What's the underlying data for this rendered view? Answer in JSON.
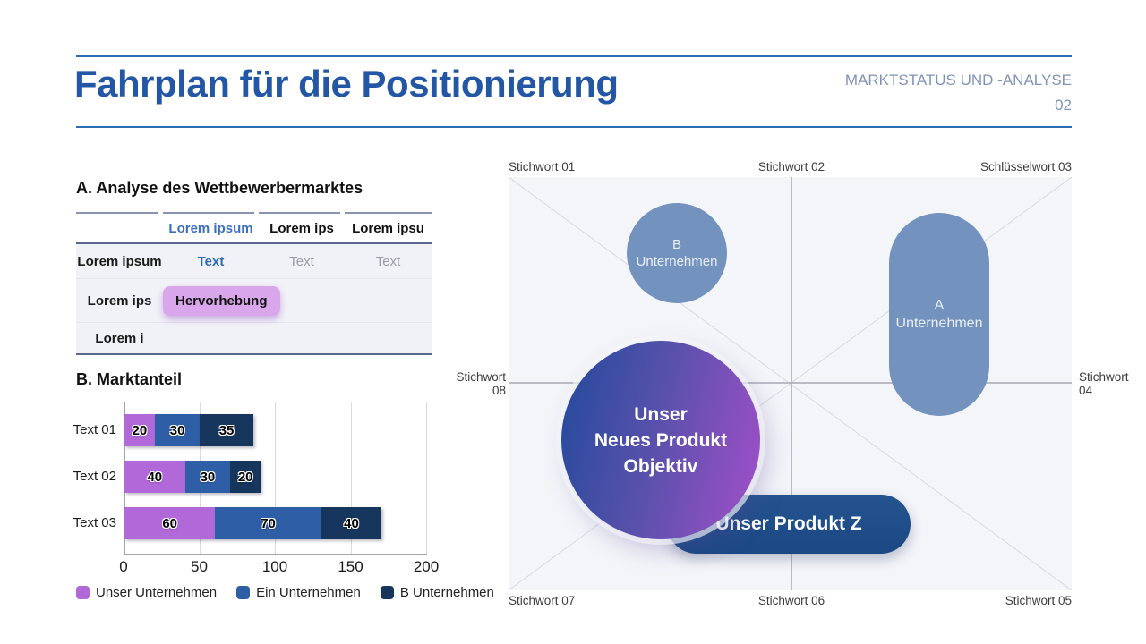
{
  "header": {
    "title": "Fahrplan für die Positionierung",
    "subtitle": "MARKTSTATUS UND -ANALYSE",
    "page_number": "02"
  },
  "section_a": {
    "heading": "A. Analyse des Wettbewerbermarktes",
    "table": {
      "col_headers": [
        "",
        "Lorem ipsum",
        "Lorem ips",
        "Lorem ipsu"
      ],
      "row1": {
        "label": "Lorem ipsum",
        "c1": "Text",
        "c2": "Text",
        "c3": "Text"
      },
      "row2": {
        "label": "Lorem ips",
        "highlight": "Hervorhebung"
      },
      "row3": {
        "label": "Lorem i"
      }
    }
  },
  "section_b": {
    "heading": "B. Marktanteil"
  },
  "chart_data": {
    "type": "bar",
    "orientation": "horizontal",
    "stacked": true,
    "title": "B. Marktanteil",
    "categories": [
      "Text 01",
      "Text 02",
      "Text 03"
    ],
    "series": [
      {
        "name": "Unser Unternehmen",
        "color": "#b168d9",
        "values": [
          20,
          40,
          60
        ]
      },
      {
        "name": "Ein Unternehmen",
        "color": "#2e5ea6",
        "values": [
          30,
          30,
          70
        ]
      },
      {
        "name": "B Unternehmen",
        "color": "#16365e",
        "values": [
          35,
          20,
          40
        ]
      }
    ],
    "totals": [
      85,
      90,
      170
    ],
    "xlim": [
      0,
      200
    ],
    "xticks": [
      0,
      50,
      100,
      150,
      200
    ],
    "grid": true,
    "legend_position": "bottom"
  },
  "quadrant": {
    "labels": {
      "top_left": "Stichwort 01",
      "top_center": "Stichwort 02",
      "top_right": "Schlüsselwort 03",
      "mid_left_1": "Stichwort",
      "mid_left_2": "08",
      "mid_right_1": "Stichwort",
      "mid_right_2": "04",
      "bottom_left": "Stichwort 07",
      "bottom_center": "Stichwort 06",
      "bottom_right": "Stichwort 05"
    },
    "shapes": {
      "company_b": {
        "line1": "B",
        "line2": "Unternehmen",
        "color": "#7392be"
      },
      "company_a": {
        "line1": "A",
        "line2": "Unternehmen",
        "color": "#7392be"
      },
      "product_z": {
        "label": "Unser Produkt Z",
        "color": "#1f4e8c"
      },
      "new_product": {
        "line1": "Unser",
        "line2": "Neues Produkt",
        "line3": "Objektiv",
        "gradient_from": "#2b4b9e",
        "gradient_to": "#9b4fc6"
      }
    }
  },
  "colors": {
    "accent_blue": "#2e6bb5",
    "title_blue": "#2357a5",
    "subtitle_gray_blue": "#8093b8",
    "highlight_purple": "#d9a6ec",
    "panel_bg": "#f4f5f9",
    "steel_blue": "#7392be",
    "pill_blue": "#1f4e8c",
    "bar_purple": "#b168d9",
    "bar_blue": "#2e5ea6",
    "bar_navy": "#16365e"
  }
}
